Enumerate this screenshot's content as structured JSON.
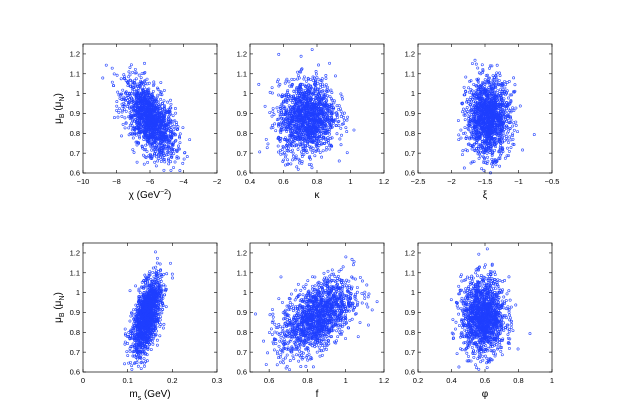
{
  "chart_data": [
    {
      "type": "scatter",
      "xlabel": "χ (GeV",
      "xlabel_sup": "−2",
      "xlabel_tail": ")",
      "ylabel": "μ",
      "ylabel_sub": "B",
      "ylabel_tail": " (μ",
      "ylabel_tail_sub": "N",
      "ylabel_end": ")",
      "xlim": [
        -10,
        -2
      ],
      "ylim": [
        0.6,
        1.25
      ],
      "xticks": [
        -10,
        -8,
        -6,
        -4,
        -2
      ],
      "xtick_labels": [
        "−10",
        "−8",
        "−6",
        "−4",
        "−2"
      ],
      "yticks": [
        0.6,
        0.7,
        0.8,
        0.9,
        1.0,
        1.1,
        1.2
      ],
      "ytick_labels": [
        "0.6",
        "0.7",
        "0.8",
        "0.9",
        "1",
        "1.1",
        "1.2"
      ],
      "color": "#1f3fff",
      "cloud": {
        "x_mean": -6.0,
        "x_sd": 0.75,
        "y_mean": 0.87,
        "y_sd": 0.095,
        "corr": -0.55,
        "n": 1500
      }
    },
    {
      "type": "scatter",
      "xlabel": "κ",
      "xlim": [
        0.4,
        1.2
      ],
      "ylim": [
        0.6,
        1.25
      ],
      "xticks": [
        0.4,
        0.6,
        0.8,
        1.0,
        1.2
      ],
      "xtick_labels": [
        "0.4",
        "0.6",
        "0.8",
        "1",
        "1.2"
      ],
      "yticks": [
        0.6,
        0.7,
        0.8,
        0.9,
        1.0,
        1.1,
        1.2
      ],
      "ytick_labels": [
        "0.6",
        "0.7",
        "0.8",
        "0.9",
        "1",
        "1.1",
        "1.2"
      ],
      "color": "#1f3fff",
      "cloud": {
        "x_mean": 0.74,
        "x_sd": 0.085,
        "y_mean": 0.88,
        "y_sd": 0.095,
        "corr": 0.1,
        "n": 1500
      }
    },
    {
      "type": "scatter",
      "xlabel": "ξ",
      "xlim": [
        -2.5,
        -0.5
      ],
      "ylim": [
        0.6,
        1.25
      ],
      "xticks": [
        -2.5,
        -2,
        -1.5,
        -1,
        -0.5
      ],
      "xtick_labels": [
        "−2.5",
        "−2",
        "−1.5",
        "−1",
        "−0.5"
      ],
      "yticks": [
        0.6,
        0.7,
        0.8,
        0.9,
        1.0,
        1.1,
        1.2
      ],
      "ytick_labels": [
        "0.6",
        "0.7",
        "0.8",
        "0.9",
        "1",
        "1.1",
        "1.2"
      ],
      "color": "#1f3fff",
      "cloud": {
        "x_mean": -1.45,
        "x_sd": 0.16,
        "y_mean": 0.88,
        "y_sd": 0.095,
        "corr": 0.0,
        "n": 1500
      }
    },
    {
      "type": "scatter",
      "xlabel": "m",
      "xlabel_sub": "s",
      "xlabel_tail": " (GeV)",
      "ylabel": "μ",
      "ylabel_sub": "B",
      "ylabel_tail": " (μ",
      "ylabel_tail_sub": "N",
      "ylabel_end": ")",
      "xlim": [
        0,
        0.3
      ],
      "ylim": [
        0.6,
        1.25
      ],
      "xticks": [
        0,
        0.1,
        0.2,
        0.3
      ],
      "xtick_labels": [
        "0",
        "0.1",
        "0.2",
        "0.3"
      ],
      "yticks": [
        0.6,
        0.7,
        0.8,
        0.9,
        1.0,
        1.1,
        1.2
      ],
      "ytick_labels": [
        "0.6",
        "0.7",
        "0.8",
        "0.9",
        "1",
        "1.1",
        "1.2"
      ],
      "color": "#1f3fff",
      "cloud": {
        "x_mean": 0.143,
        "x_sd": 0.016,
        "y_mean": 0.88,
        "y_sd": 0.095,
        "corr": 0.55,
        "n": 1500
      }
    },
    {
      "type": "scatter",
      "xlabel": "f",
      "xlim": [
        0.5,
        1.2
      ],
      "ylim": [
        0.6,
        1.25
      ],
      "xticks": [
        0.6,
        0.8,
        1.0,
        1.2
      ],
      "xtick_labels": [
        "0.6",
        "0.8",
        "1",
        "1.2"
      ],
      "yticks": [
        0.6,
        0.7,
        0.8,
        0.9,
        1.0,
        1.1,
        1.2
      ],
      "ytick_labels": [
        "0.6",
        "0.7",
        "0.8",
        "0.9",
        "1",
        "1.1",
        "1.2"
      ],
      "color": "#1f3fff",
      "cloud": {
        "x_mean": 0.85,
        "x_sd": 0.095,
        "y_mean": 0.88,
        "y_sd": 0.095,
        "corr": 0.5,
        "n": 1500
      }
    },
    {
      "type": "scatter",
      "xlabel": "φ",
      "xlim": [
        0.2,
        1.0
      ],
      "ylim": [
        0.6,
        1.25
      ],
      "xticks": [
        0.2,
        0.4,
        0.6,
        0.8,
        1.0
      ],
      "xtick_labels": [
        "0.2",
        "0.4",
        "0.6",
        "0.8",
        "1"
      ],
      "yticks": [
        0.6,
        0.7,
        0.8,
        0.9,
        1.0,
        1.1,
        1.2
      ],
      "ytick_labels": [
        "0.6",
        "0.7",
        "0.8",
        "0.9",
        "1",
        "1.1",
        "1.2"
      ],
      "color": "#1f3fff",
      "cloud": {
        "x_mean": 0.59,
        "x_sd": 0.065,
        "y_mean": 0.88,
        "y_sd": 0.095,
        "corr": 0.0,
        "n": 1500
      }
    }
  ]
}
